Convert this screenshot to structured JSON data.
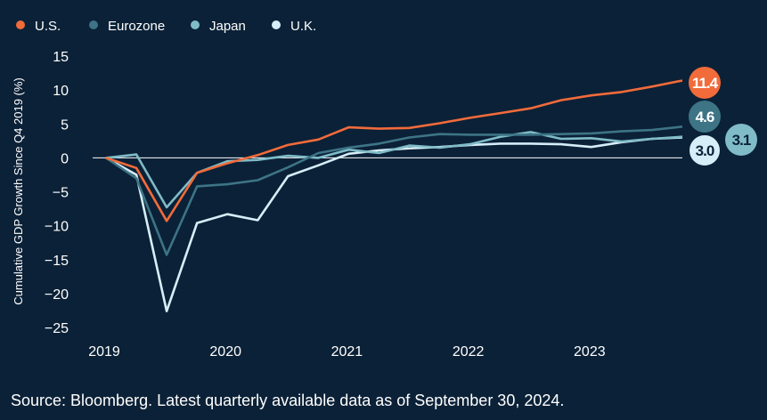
{
  "chart_data": {
    "type": "line",
    "ylabel": "Cumulative GDP Growth Since Q4 2019 (%)",
    "ylim": [
      -25,
      15
    ],
    "yticks": [
      15,
      10,
      5,
      0,
      -5,
      -10,
      -15,
      -20,
      -25
    ],
    "xlim": [
      2019,
      2023.75
    ],
    "xticks": [
      2019,
      2020,
      2021,
      2022,
      2023
    ],
    "legend_position": "top-left",
    "grid": false,
    "series": [
      {
        "name": "U.S.",
        "color": "#f26b3a",
        "end_label": "11.4",
        "points": [
          [
            2019,
            0
          ],
          [
            2019.25,
            -1.5
          ],
          [
            2019.5,
            -9.3
          ],
          [
            2019.75,
            -2.2
          ],
          [
            2020,
            -0.8
          ],
          [
            2020.25,
            0.4
          ],
          [
            2020.5,
            1.9
          ],
          [
            2020.75,
            2.7
          ],
          [
            2021,
            4.5
          ],
          [
            2021.25,
            4.3
          ],
          [
            2021.5,
            4.4
          ],
          [
            2021.75,
            5.1
          ],
          [
            2022,
            5.9
          ],
          [
            2022.25,
            6.6
          ],
          [
            2022.5,
            7.3
          ],
          [
            2022.75,
            8.5
          ],
          [
            2023,
            9.2
          ],
          [
            2023.25,
            9.7
          ],
          [
            2023.5,
            10.5
          ],
          [
            2023.75,
            11.4
          ]
        ]
      },
      {
        "name": "Eurozone",
        "color": "#3d7486",
        "end_label": "4.6",
        "points": [
          [
            2019,
            0
          ],
          [
            2019.25,
            -3.0
          ],
          [
            2019.5,
            -14.3
          ],
          [
            2019.75,
            -4.2
          ],
          [
            2020,
            -3.9
          ],
          [
            2020.25,
            -3.3
          ],
          [
            2020.5,
            -1.4
          ],
          [
            2020.75,
            0.7
          ],
          [
            2021,
            1.5
          ],
          [
            2021.25,
            2.1
          ],
          [
            2021.5,
            3.0
          ],
          [
            2021.75,
            3.5
          ],
          [
            2022,
            3.4
          ],
          [
            2022.25,
            3.4
          ],
          [
            2022.5,
            3.4
          ],
          [
            2022.75,
            3.5
          ],
          [
            2023,
            3.6
          ],
          [
            2023.25,
            3.9
          ],
          [
            2023.5,
            4.1
          ],
          [
            2023.75,
            4.6
          ]
        ]
      },
      {
        "name": "Japan",
        "color": "#7fbcc8",
        "end_label": "3.1",
        "points": [
          [
            2019,
            0
          ],
          [
            2019.25,
            0.5
          ],
          [
            2019.5,
            -7.3
          ],
          [
            2019.75,
            -2.2
          ],
          [
            2020,
            -0.5
          ],
          [
            2020.25,
            -0.3
          ],
          [
            2020.5,
            0.3
          ],
          [
            2020.75,
            0.0
          ],
          [
            2021,
            1.2
          ],
          [
            2021.25,
            0.7
          ],
          [
            2021.5,
            1.8
          ],
          [
            2021.75,
            1.5
          ],
          [
            2022,
            2.0
          ],
          [
            2022.25,
            3.1
          ],
          [
            2022.5,
            3.8
          ],
          [
            2022.75,
            2.8
          ],
          [
            2023,
            2.9
          ],
          [
            2023.25,
            2.4
          ],
          [
            2023.5,
            2.8
          ],
          [
            2023.75,
            3.1
          ]
        ]
      },
      {
        "name": "U.K.",
        "color": "#d6eef8",
        "end_label": "3.0",
        "points": [
          [
            2019,
            0
          ],
          [
            2019.25,
            -2.5
          ],
          [
            2019.5,
            -22.6
          ],
          [
            2019.75,
            -9.6
          ],
          [
            2020,
            -8.3
          ],
          [
            2020.25,
            -9.2
          ],
          [
            2020.5,
            -2.7
          ],
          [
            2020.75,
            -1.1
          ],
          [
            2021,
            0.6
          ],
          [
            2021.25,
            1.1
          ],
          [
            2021.5,
            1.4
          ],
          [
            2021.75,
            1.6
          ],
          [
            2022,
            1.9
          ],
          [
            2022.25,
            2.1
          ],
          [
            2022.5,
            2.1
          ],
          [
            2022.75,
            2.0
          ],
          [
            2023,
            1.6
          ],
          [
            2023.25,
            2.3
          ],
          [
            2023.5,
            2.8
          ],
          [
            2023.75,
            3.0
          ]
        ]
      }
    ]
  },
  "source": "Source: Bloomberg. Latest quarterly available data as of September 30, 2024."
}
